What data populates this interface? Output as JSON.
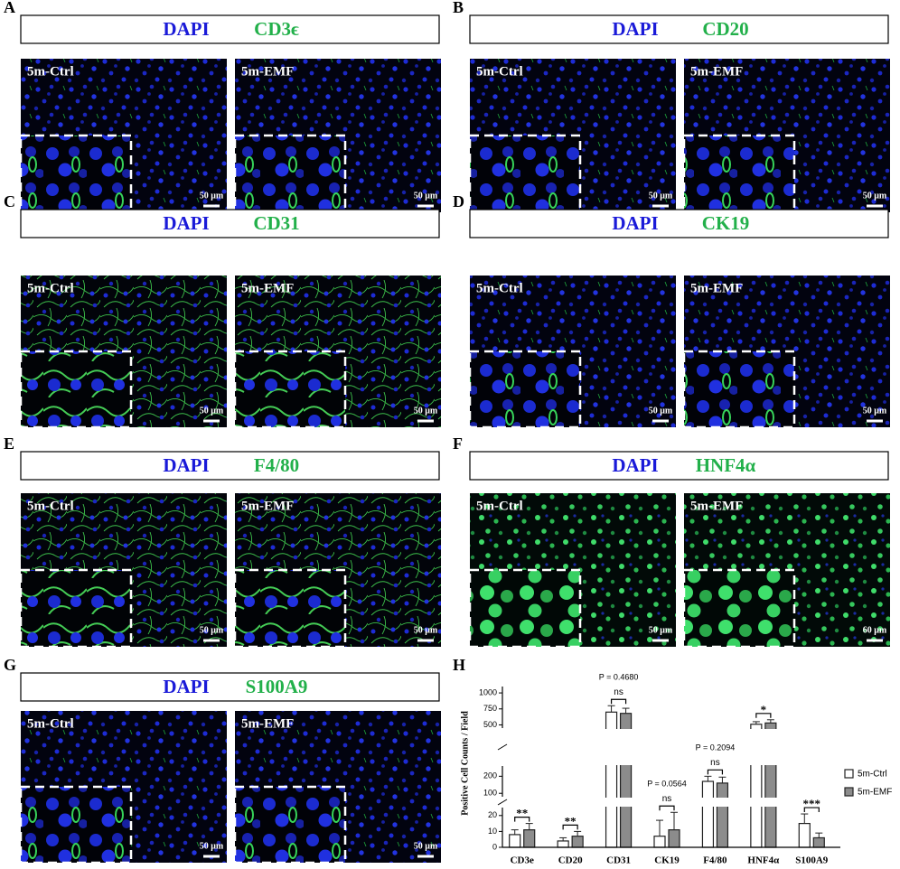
{
  "panels": [
    {
      "letter": "A",
      "stains": [
        "DAPI",
        "CD3ϵ"
      ],
      "images": [
        {
          "label": "5m-Ctrl",
          "scale": "50 μm"
        },
        {
          "label": "5m-EMF",
          "scale": "50 μm"
        }
      ]
    },
    {
      "letter": "B",
      "stains": [
        "DAPI",
        "CD20"
      ],
      "images": [
        {
          "label": "5m-Ctrl",
          "scale": "50 μm"
        },
        {
          "label": "5m-EMF",
          "scale": "50 μm"
        }
      ]
    },
    {
      "letter": "C",
      "stains": [
        "DAPI",
        "CD31"
      ],
      "images": [
        {
          "label": "5m-Ctrl",
          "scale": "50 μm"
        },
        {
          "label": "5m-EMF",
          "scale": "50 μm"
        }
      ]
    },
    {
      "letter": "D",
      "stains": [
        "DAPI",
        "CK19"
      ],
      "images": [
        {
          "label": "5m-Ctrl",
          "scale": "50 μm"
        },
        {
          "label": "5m-EMF",
          "scale": "50 μm"
        }
      ]
    },
    {
      "letter": "E",
      "stains": [
        "DAPI",
        "F4/80"
      ],
      "images": [
        {
          "label": "5m-Ctrl",
          "scale": "50 μm"
        },
        {
          "label": "5m-EMF",
          "scale": "50 μm"
        }
      ]
    },
    {
      "letter": "F",
      "stains": [
        "DAPI",
        "HNF4α"
      ],
      "images": [
        {
          "label": "5m-Ctrl",
          "scale": "50 μm"
        },
        {
          "label": "5m-EMF",
          "scale": "60 μm"
        }
      ]
    },
    {
      "letter": "G",
      "stains": [
        "DAPI",
        "S100A9"
      ],
      "images": [
        {
          "label": "5m-Ctrl",
          "scale": "50 μm"
        },
        {
          "label": "5m-EMF",
          "scale": "50 μm"
        }
      ]
    }
  ],
  "chart_data": {
    "type": "bar",
    "letter": "H",
    "ylabel": "Positive Cell Counts / Field",
    "categories": [
      "CD3e",
      "CD20",
      "CD31",
      "CK19",
      "F4/80",
      "HNF4α",
      "S100A9"
    ],
    "series": [
      {
        "name": "5m-Ctrl",
        "color": "#ffffff",
        "values": [
          8,
          4,
          700,
          7,
          170,
          510,
          15
        ],
        "errors": [
          3,
          2,
          100,
          10,
          30,
          40,
          6
        ]
      },
      {
        "name": "5m-EMF",
        "color": "#8c8c8c",
        "values": [
          11,
          7,
          680,
          11,
          160,
          530,
          6
        ],
        "errors": [
          4,
          3,
          80,
          11,
          35,
          50,
          3
        ]
      }
    ],
    "y_segments": [
      {
        "ylim": [
          0,
          25
        ],
        "yticks": [
          0,
          10,
          20
        ]
      },
      {
        "ylim": [
          80,
          260
        ],
        "yticks": [
          100,
          200
        ]
      },
      {
        "ylim": [
          450,
          1100
        ],
        "yticks": [
          500,
          750,
          1000
        ]
      }
    ],
    "significance": [
      "**",
      "**",
      "ns",
      "ns",
      "ns",
      "*",
      "***"
    ],
    "p_values": [
      null,
      null,
      "P = 0.4680",
      "P = 0.0564",
      "P = 0.2094",
      null,
      null
    ]
  }
}
